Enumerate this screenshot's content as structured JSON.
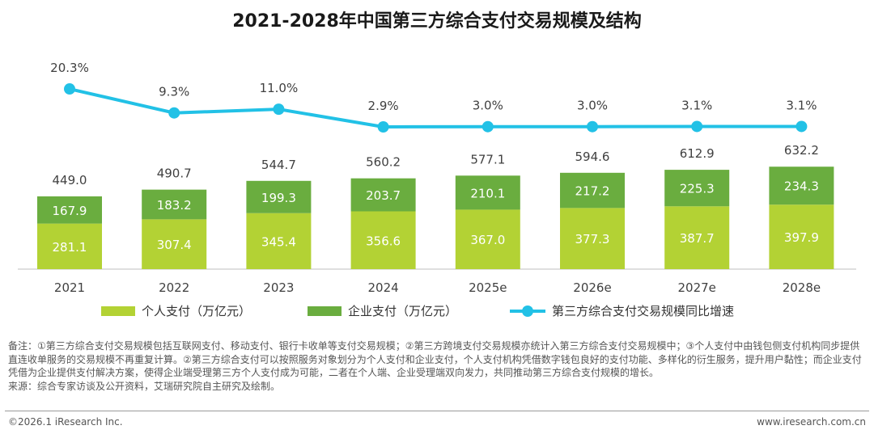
{
  "chart_data": {
    "type": "bar",
    "title": "2021-2028年中国第三方综合支付交易规模及结构",
    "categories": [
      "2021",
      "2022",
      "2023",
      "2024",
      "2025e",
      "2026e",
      "2027e",
      "2028e"
    ],
    "series": [
      {
        "name": "个人支付（万亿元）",
        "type": "bar",
        "stack": "total",
        "color": "#b3d234",
        "values": [
          281.1,
          307.4,
          345.4,
          356.6,
          367.0,
          377.3,
          387.7,
          397.9
        ]
      },
      {
        "name": "企业支付（万亿元）",
        "type": "bar",
        "stack": "total",
        "color": "#6aad3f",
        "values": [
          167.9,
          183.2,
          199.3,
          203.7,
          210.1,
          217.2,
          225.3,
          234.3
        ]
      },
      {
        "name": "第三方综合支付交易规模同比增速",
        "type": "line",
        "color": "#22c1e6",
        "unit": "%",
        "values": [
          20.3,
          9.3,
          11.0,
          2.9,
          3.0,
          3.0,
          3.1,
          3.1
        ]
      }
    ],
    "totals": [
      "449.0",
      "490.7",
      "544.7",
      "560.2",
      "577.1",
      "594.6",
      "612.9",
      "632.2"
    ],
    "value_labels": {
      "personal": [
        "281.1",
        "307.4",
        "345.4",
        "356.6",
        "367.0",
        "377.3",
        "387.7",
        "397.9"
      ],
      "enterprise": [
        "167.9",
        "183.2",
        "199.3",
        "203.7",
        "210.1",
        "217.2",
        "225.3",
        "234.3"
      ],
      "growth": [
        "20.3%",
        "9.3%",
        "11.0%",
        "2.9%",
        "3.0%",
        "3.0%",
        "3.1%",
        "3.1%"
      ]
    },
    "legend_position": "bottom",
    "grid": false
  },
  "legend": {
    "personal": "个人支付（万亿元）",
    "enterprise": "企业支付（万亿元）",
    "growth": "第三方综合支付交易规模同比增速"
  },
  "notes": {
    "remark": "备注：①第三方综合支付交易规模包括互联网支付、移动支付、银行卡收单等支付交易规模；②第三方跨境支付交易规模亦统计入第三方综合支付交易规模中；③个人支付中由钱包侧支付机构同步提供直连收单服务的交易规模不再重复计算。②第三方综合支付可以按照服务对象划分为个人支付和企业支付，个人支付机构凭借数字钱包良好的支付功能、多样化的衍生服务，提升用户黏性；而企业支付凭借为企业提供支付解决方案，使得企业端受理第三方个人支付成为可能，二者在个人端、企业受理端双向发力，共同推动第三方综合支付规模的增长。",
    "source": "来源：综合专家访谈及公开资料，艾瑞研究院自主研究及绘制。"
  },
  "footer": {
    "copyright": "©2026.1 iResearch Inc.",
    "website": "www.iresearch.com.cn"
  }
}
